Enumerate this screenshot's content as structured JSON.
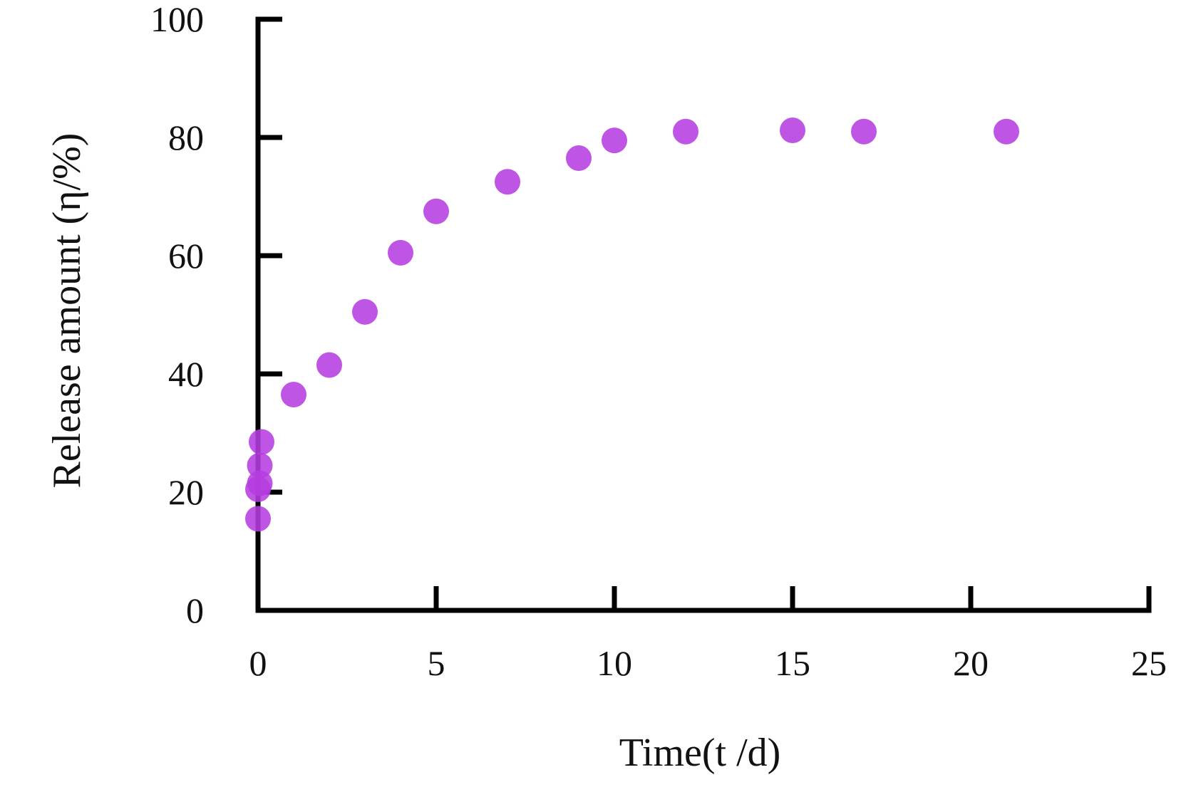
{
  "chart_data": {
    "type": "scatter",
    "title": "",
    "xlabel": "Time(t /d)",
    "ylabel": "Release amount (η/%)",
    "xlim": [
      0,
      25
    ],
    "ylim": [
      0,
      100
    ],
    "x_ticks": [
      "0",
      "5",
      "10",
      "15",
      "20",
      "25"
    ],
    "y_ticks": [
      "0",
      "20",
      "40",
      "60",
      "80",
      "100"
    ],
    "grid": false,
    "legend": "none",
    "point_color": "#b63ee0",
    "series": [
      {
        "points": [
          {
            "x": 0.0,
            "y": 15.5
          },
          {
            "x": 0.0,
            "y": 20.5
          },
          {
            "x": 0.05,
            "y": 21.5
          },
          {
            "x": 0.05,
            "y": 24.5
          },
          {
            "x": 0.1,
            "y": 28.5
          },
          {
            "x": 1,
            "y": 36.5
          },
          {
            "x": 2,
            "y": 41.5
          },
          {
            "x": 3,
            "y": 50.5
          },
          {
            "x": 4,
            "y": 60.5
          },
          {
            "x": 5,
            "y": 67.5
          },
          {
            "x": 7,
            "y": 72.5
          },
          {
            "x": 9,
            "y": 76.5
          },
          {
            "x": 10,
            "y": 79.5
          },
          {
            "x": 12,
            "y": 81.0
          },
          {
            "x": 15,
            "y": 81.2
          },
          {
            "x": 17,
            "y": 81.0
          },
          {
            "x": 21,
            "y": 81.0
          }
        ]
      }
    ]
  }
}
